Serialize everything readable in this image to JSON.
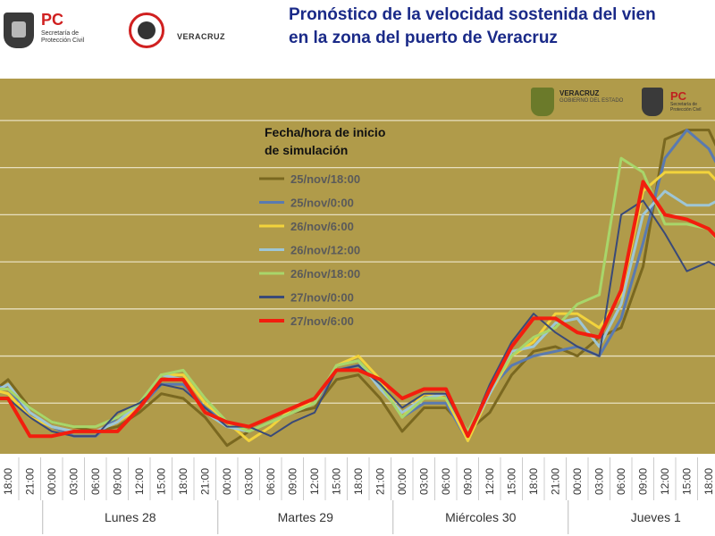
{
  "header": {
    "pc_logo_text": "PC",
    "pc_logo_sub": "Secretaría de Protección Civil",
    "vz_logo_text": "VERACRUZ",
    "title_line1": "Pronóstico de la velocidad sostenida del vien",
    "title_line2": "en la zona del puerto de Veracruz"
  },
  "inner_logos": {
    "veracruz_text": "VERACRUZ",
    "veracruz_sub": "GOBIERNO DEL ESTADO",
    "pc_text": "PC",
    "pc_sub": "Secretaría de Protección Civil"
  },
  "colors": {
    "background": "#b09b4a",
    "gridline": "#e8e0c0"
  },
  "chart_data": {
    "type": "line",
    "legend_title": "Fecha/hora de inicio\nde simulación",
    "legend_placement": "top-center",
    "grid": true,
    "xlabel": "",
    "ylabel": "",
    "x_tick_labels": [
      "18:00",
      "21:00",
      "00:00",
      "03:00",
      "06:00",
      "09:00",
      "12:00",
      "15:00",
      "18:00",
      "21:00",
      "00:00",
      "03:00",
      "06:00",
      "09:00",
      "12:00",
      "15:00",
      "18:00",
      "21:00",
      "00:00",
      "03:00",
      "06:00",
      "09:00",
      "12:00",
      "15:00",
      "18:00",
      "21:00",
      "00:00",
      "03:00",
      "06:00",
      "09:00",
      "12:00",
      "15:00",
      "18:00"
    ],
    "day_labels": [
      "Lunes 28",
      "Martes 29",
      "Miércoles 30",
      "Jueves 1"
    ],
    "ylim": [
      0,
      7.7
    ],
    "series": [
      {
        "name": "25/nov/18:00",
        "color": "#7a6820",
        "width": 3,
        "points": [
          [
            -0.8,
            1.2
          ],
          [
            0,
            1.5
          ],
          [
            1,
            0.9
          ],
          [
            2,
            0.6
          ],
          [
            3,
            0.5
          ],
          [
            4,
            0.4
          ],
          [
            5,
            0.5
          ],
          [
            6,
            0.8
          ],
          [
            7,
            1.2
          ],
          [
            8,
            1.1
          ],
          [
            9,
            0.7
          ],
          [
            10,
            0.1
          ],
          [
            11,
            0.4
          ],
          [
            12,
            0.6
          ],
          [
            13,
            0.8
          ],
          [
            14,
            0.9
          ],
          [
            15,
            1.5
          ],
          [
            16,
            1.6
          ],
          [
            17,
            1.1
          ],
          [
            18,
            0.4
          ],
          [
            19,
            0.9
          ],
          [
            20,
            0.9
          ],
          [
            21,
            0.4
          ],
          [
            22,
            0.8
          ],
          [
            23,
            1.6
          ],
          [
            24,
            2.1
          ],
          [
            25,
            2.2
          ],
          [
            26,
            2.0
          ],
          [
            27,
            2.4
          ],
          [
            28,
            2.6
          ],
          [
            29,
            3.9
          ],
          [
            30,
            6.6
          ],
          [
            31,
            6.8
          ],
          [
            32,
            6.8
          ],
          [
            32.8,
            6.0
          ]
        ]
      },
      {
        "name": "25/nov/0:00",
        "color": "#5a7ab0",
        "width": 3,
        "points": [
          [
            -0.8,
            1.4
          ],
          [
            0,
            1.3
          ],
          [
            1,
            0.8
          ],
          [
            2,
            0.5
          ],
          [
            3,
            0.3
          ],
          [
            4,
            0.3
          ],
          [
            5,
            0.7
          ],
          [
            6,
            0.9
          ],
          [
            7,
            1.4
          ],
          [
            8,
            1.4
          ],
          [
            9,
            0.9
          ],
          [
            10,
            0.6
          ],
          [
            11,
            0.4
          ],
          [
            12,
            0.6
          ],
          [
            13,
            0.8
          ],
          [
            14,
            1.0
          ],
          [
            15,
            1.7
          ],
          [
            16,
            1.8
          ],
          [
            17,
            1.4
          ],
          [
            18,
            0.7
          ],
          [
            19,
            1.0
          ],
          [
            20,
            1.0
          ],
          [
            21,
            0.2
          ],
          [
            22,
            1.3
          ],
          [
            23,
            1.8
          ],
          [
            24,
            2.0
          ],
          [
            25,
            2.1
          ],
          [
            26,
            2.2
          ],
          [
            27,
            2.0
          ],
          [
            28,
            2.8
          ],
          [
            29,
            4.4
          ],
          [
            30,
            6.2
          ],
          [
            31,
            6.8
          ],
          [
            32,
            6.4
          ],
          [
            32.8,
            5.7
          ]
        ]
      },
      {
        "name": "26/nov/6:00",
        "color": "#f2d33c",
        "width": 3,
        "points": [
          [
            -0.8,
            1.3
          ],
          [
            0,
            1.2
          ],
          [
            1,
            0.7
          ],
          [
            2,
            0.5
          ],
          [
            3,
            0.4
          ],
          [
            4,
            0.4
          ],
          [
            5,
            0.6
          ],
          [
            6,
            0.9
          ],
          [
            7,
            1.6
          ],
          [
            8,
            1.6
          ],
          [
            9,
            1.0
          ],
          [
            10,
            0.6
          ],
          [
            11,
            0.2
          ],
          [
            12,
            0.5
          ],
          [
            13,
            0.9
          ],
          [
            14,
            1.0
          ],
          [
            15,
            1.8
          ],
          [
            16,
            2.0
          ],
          [
            17,
            1.5
          ],
          [
            18,
            0.7
          ],
          [
            19,
            1.2
          ],
          [
            20,
            1.1
          ],
          [
            21,
            0.2
          ],
          [
            22,
            1.2
          ],
          [
            23,
            2.0
          ],
          [
            24,
            2.3
          ],
          [
            25,
            2.9
          ],
          [
            26,
            2.9
          ],
          [
            27,
            2.6
          ],
          [
            28,
            3.3
          ],
          [
            29,
            5.5
          ],
          [
            30,
            5.9
          ],
          [
            31,
            5.9
          ],
          [
            32,
            5.9
          ],
          [
            32.8,
            5.5
          ]
        ]
      },
      {
        "name": "26/nov/12:00",
        "color": "#9ec6d6",
        "width": 3,
        "points": [
          [
            -0.8,
            1.2
          ],
          [
            0,
            1.4
          ],
          [
            1,
            0.8
          ],
          [
            2,
            0.5
          ],
          [
            3,
            0.4
          ],
          [
            4,
            0.4
          ],
          [
            5,
            0.6
          ],
          [
            6,
            1.0
          ],
          [
            7,
            1.6
          ],
          [
            8,
            1.5
          ],
          [
            9,
            0.8
          ],
          [
            10,
            0.5
          ],
          [
            11,
            0.4
          ],
          [
            12,
            0.6
          ],
          [
            13,
            0.8
          ],
          [
            14,
            1.0
          ],
          [
            15,
            1.8
          ],
          [
            16,
            1.9
          ],
          [
            17,
            1.3
          ],
          [
            18,
            0.8
          ],
          [
            19,
            1.1
          ],
          [
            20,
            1.2
          ],
          [
            21,
            0.3
          ],
          [
            22,
            1.2
          ],
          [
            23,
            2.1
          ],
          [
            24,
            2.2
          ],
          [
            25,
            2.7
          ],
          [
            26,
            2.8
          ],
          [
            27,
            2.2
          ],
          [
            28,
            3.1
          ],
          [
            29,
            5.0
          ],
          [
            30,
            5.5
          ],
          [
            31,
            5.2
          ],
          [
            32,
            5.2
          ],
          [
            32.8,
            5.4
          ]
        ]
      },
      {
        "name": "26/nov/18:00",
        "color": "#a8d66a",
        "width": 3,
        "points": [
          [
            -0.8,
            1.3
          ],
          [
            0,
            1.3
          ],
          [
            1,
            0.9
          ],
          [
            2,
            0.6
          ],
          [
            3,
            0.5
          ],
          [
            4,
            0.5
          ],
          [
            5,
            0.7
          ],
          [
            6,
            1.0
          ],
          [
            7,
            1.6
          ],
          [
            8,
            1.7
          ],
          [
            9,
            1.1
          ],
          [
            10,
            0.6
          ],
          [
            11,
            0.4
          ],
          [
            12,
            0.6
          ],
          [
            13,
            0.8
          ],
          [
            14,
            1.0
          ],
          [
            15,
            1.8
          ],
          [
            16,
            1.9
          ],
          [
            17,
            1.4
          ],
          [
            18,
            0.7
          ],
          [
            19,
            1.1
          ],
          [
            20,
            1.1
          ],
          [
            21,
            0.4
          ],
          [
            22,
            1.3
          ],
          [
            23,
            2.0
          ],
          [
            24,
            2.4
          ],
          [
            25,
            2.6
          ],
          [
            26,
            3.1
          ],
          [
            27,
            3.3
          ],
          [
            28,
            6.2
          ],
          [
            29,
            5.9
          ],
          [
            30,
            4.8
          ],
          [
            31,
            4.8
          ],
          [
            32,
            4.7
          ],
          [
            32.8,
            4.2
          ]
        ]
      },
      {
        "name": "27/nov/0:00",
        "color": "#3a4a78",
        "width": 2,
        "points": [
          [
            -0.8,
            1.1
          ],
          [
            0,
            1.1
          ],
          [
            1,
            0.7
          ],
          [
            2,
            0.4
          ],
          [
            3,
            0.3
          ],
          [
            4,
            0.3
          ],
          [
            5,
            0.8
          ],
          [
            6,
            1.0
          ],
          [
            7,
            1.4
          ],
          [
            8,
            1.3
          ],
          [
            9,
            0.9
          ],
          [
            10,
            0.5
          ],
          [
            11,
            0.5
          ],
          [
            12,
            0.3
          ],
          [
            13,
            0.6
          ],
          [
            14,
            0.8
          ],
          [
            15,
            1.7
          ],
          [
            16,
            1.8
          ],
          [
            17,
            1.4
          ],
          [
            18,
            0.9
          ],
          [
            19,
            1.2
          ],
          [
            20,
            1.2
          ],
          [
            21,
            0.3
          ],
          [
            22,
            1.4
          ],
          [
            23,
            2.3
          ],
          [
            24,
            2.9
          ],
          [
            25,
            2.5
          ],
          [
            26,
            2.2
          ],
          [
            27,
            2.0
          ],
          [
            28,
            5.0
          ],
          [
            29,
            5.3
          ],
          [
            30,
            4.6
          ],
          [
            31,
            3.8
          ],
          [
            32,
            4.0
          ],
          [
            32.8,
            3.8
          ]
        ]
      },
      {
        "name": "27/nov/6:00",
        "color": "#f21e0e",
        "width": 4,
        "points": [
          [
            -0.8,
            1.1
          ],
          [
            0,
            1.1
          ],
          [
            1,
            0.3
          ],
          [
            2,
            0.3
          ],
          [
            3,
            0.4
          ],
          [
            4,
            0.4
          ],
          [
            5,
            0.4
          ],
          [
            6,
            0.9
          ],
          [
            7,
            1.5
          ],
          [
            8,
            1.5
          ],
          [
            9,
            0.8
          ],
          [
            10,
            0.6
          ],
          [
            11,
            0.5
          ],
          [
            12,
            0.7
          ],
          [
            13,
            0.9
          ],
          [
            14,
            1.1
          ],
          [
            15,
            1.7
          ],
          [
            16,
            1.7
          ],
          [
            17,
            1.5
          ],
          [
            18,
            1.1
          ],
          [
            19,
            1.3
          ],
          [
            20,
            1.3
          ],
          [
            21,
            0.3
          ],
          [
            22,
            1.3
          ],
          [
            23,
            2.2
          ],
          [
            24,
            2.8
          ],
          [
            25,
            2.8
          ],
          [
            26,
            2.5
          ],
          [
            27,
            2.4
          ],
          [
            28,
            3.4
          ],
          [
            29,
            5.7
          ],
          [
            30,
            5.0
          ],
          [
            31,
            4.9
          ],
          [
            32,
            4.7
          ],
          [
            32.8,
            4.3
          ]
        ]
      }
    ]
  }
}
